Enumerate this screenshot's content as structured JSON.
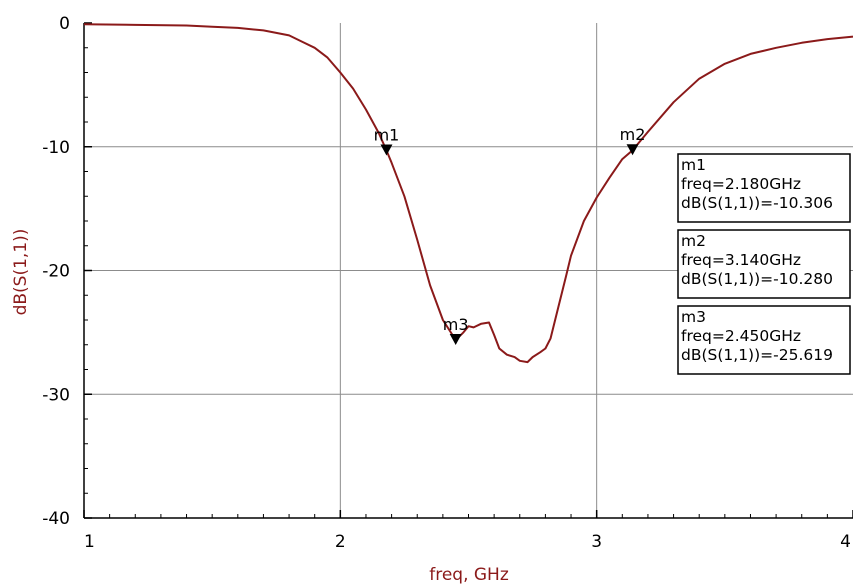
{
  "chart_data": {
    "type": "line",
    "xlabel": "freq, GHz",
    "ylabel": "dB(S(1,1))",
    "xlim": [
      1,
      4
    ],
    "ylim": [
      -40,
      0
    ],
    "xticks": [
      "1",
      "2",
      "3",
      "4"
    ],
    "yticks": [
      "0",
      "-10",
      "-20",
      "-30",
      "-40"
    ],
    "grid": true,
    "series": [
      {
        "color": "#8b1a1a",
        "x": [
          1.0,
          1.2,
          1.4,
          1.5,
          1.6,
          1.7,
          1.8,
          1.85,
          1.9,
          1.95,
          2.0,
          2.05,
          2.1,
          2.15,
          2.18,
          2.2,
          2.25,
          2.3,
          2.35,
          2.4,
          2.45,
          2.48,
          2.5,
          2.52,
          2.55,
          2.58,
          2.6,
          2.62,
          2.65,
          2.68,
          2.7,
          2.73,
          2.75,
          2.78,
          2.8,
          2.82,
          2.85,
          2.88,
          2.9,
          2.95,
          3.0,
          3.05,
          3.1,
          3.14,
          3.2,
          3.3,
          3.4,
          3.5,
          3.6,
          3.7,
          3.8,
          3.9,
          4.0
        ],
        "y": [
          -0.1,
          -0.15,
          -0.2,
          -0.3,
          -0.4,
          -0.6,
          -1.0,
          -1.5,
          -2.0,
          -2.8,
          -4.0,
          -5.3,
          -7.0,
          -8.9,
          -10.306,
          -11.3,
          -14.0,
          -17.5,
          -21.2,
          -24.0,
          -25.619,
          -25.0,
          -24.5,
          -24.6,
          -24.3,
          -24.2,
          -25.2,
          -26.3,
          -26.8,
          -27.0,
          -27.3,
          -27.4,
          -27.0,
          -26.6,
          -26.3,
          -25.5,
          -23.0,
          -20.5,
          -18.8,
          -16.0,
          -14.1,
          -12.5,
          -11.0,
          -10.28,
          -8.8,
          -6.4,
          -4.5,
          -3.3,
          -2.5,
          -2.0,
          -1.6,
          -1.3,
          -1.1
        ]
      }
    ],
    "markers": [
      {
        "name": "m1",
        "x": 2.18,
        "y": -10.306,
        "lines": [
          "m1",
          "freq=2.180GHz",
          "dB(S(1,1))=-10.306"
        ]
      },
      {
        "name": "m2",
        "x": 3.14,
        "y": -10.28,
        "lines": [
          "m2",
          "freq=3.140GHz",
          "dB(S(1,1))=-10.280"
        ]
      },
      {
        "name": "m3",
        "x": 2.45,
        "y": -25.619,
        "lines": [
          "m3",
          "freq=2.450GHz",
          "dB(S(1,1))=-25.619"
        ]
      }
    ]
  }
}
